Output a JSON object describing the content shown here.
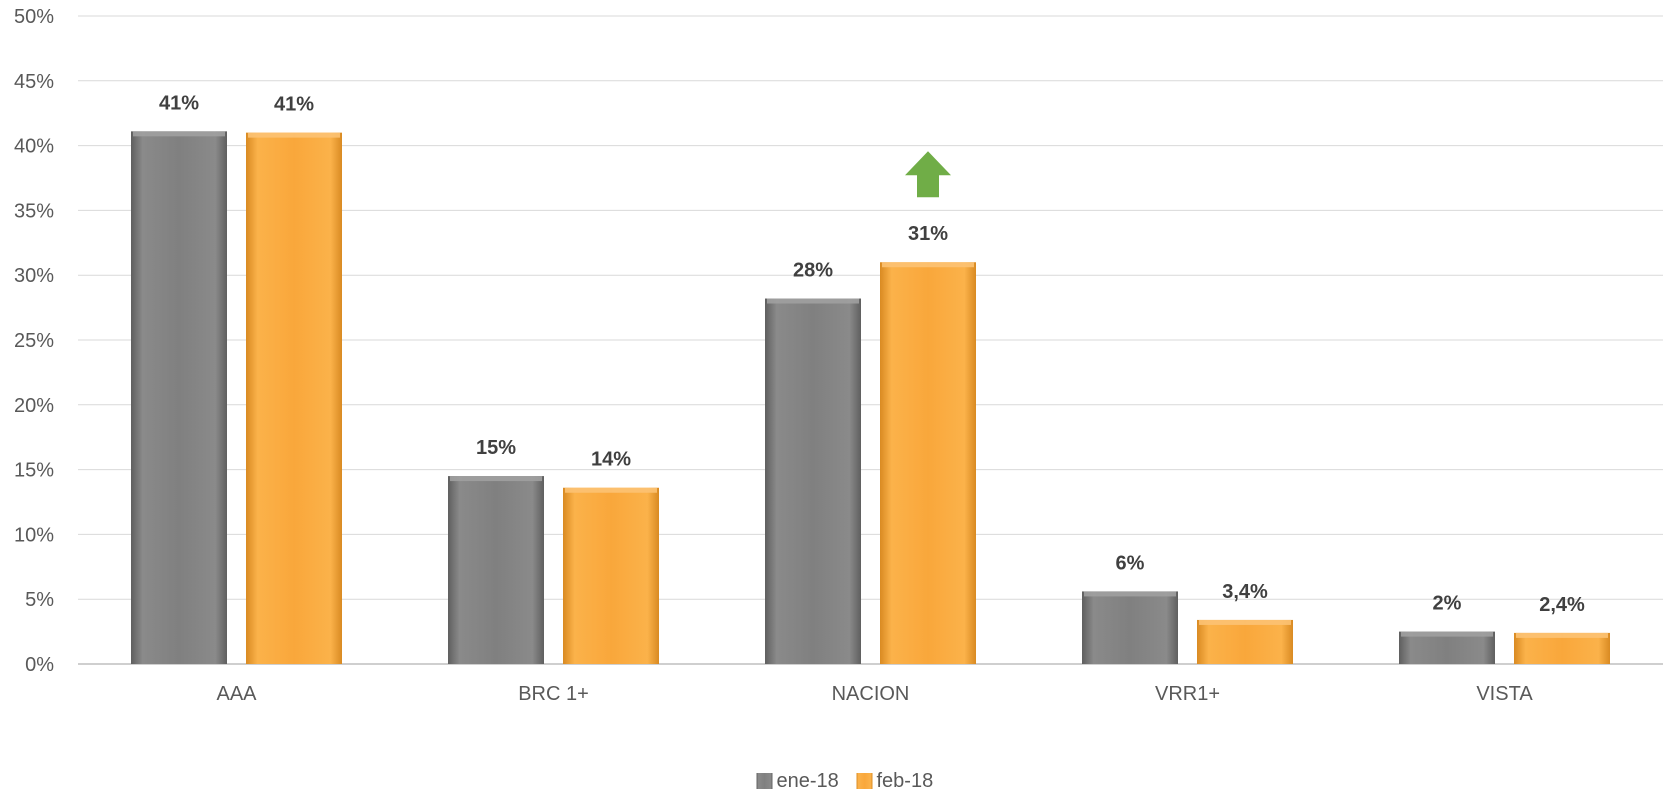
{
  "chart_data": {
    "type": "bar",
    "title": "",
    "xlabel": "",
    "ylabel": "",
    "categories": [
      "AAA",
      "BRC 1+",
      "NACION",
      "VRR1+",
      "VISTA"
    ],
    "series": [
      {
        "name": "ene-18",
        "color": "#7F7F7F",
        "values": [
          41.1,
          14.5,
          28.2,
          5.6,
          2.5
        ],
        "labels": [
          "41%",
          "15%",
          "28%",
          "6%",
          "2%"
        ]
      },
      {
        "name": "feb-18",
        "color": "#F9A73B",
        "values": [
          41.0,
          13.6,
          31.0,
          3.4,
          2.4
        ],
        "labels": [
          "41%",
          "14%",
          "31%",
          "3,4%",
          "2,4%"
        ]
      }
    ],
    "ylim": [
      0,
      50
    ],
    "yticks": [
      0,
      5,
      10,
      15,
      20,
      25,
      30,
      35,
      40,
      45,
      50
    ],
    "ytick_labels": [
      "0%",
      "5%",
      "10%",
      "15%",
      "20%",
      "25%",
      "30%",
      "35%",
      "40%",
      "45%",
      "50%"
    ],
    "grid": true,
    "legend_position": "bottom",
    "annotations": [
      {
        "type": "up-arrow-icon",
        "category": "NACION",
        "series": "feb-18",
        "color": "#70AD47"
      }
    ]
  }
}
